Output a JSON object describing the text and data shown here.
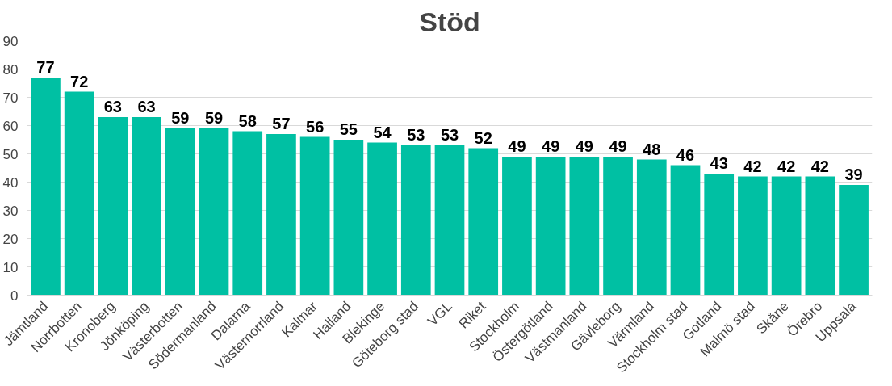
{
  "chart_data": {
    "type": "bar",
    "title": "Stöd",
    "categories": [
      "Jämtland",
      "Norrbotten",
      "Kronoberg",
      "Jönköping",
      "Västerbotten",
      "Södermanland",
      "Dalarna",
      "Västernorrland",
      "Kalmar",
      "Halland",
      "Blekinge",
      "Göteborg stad",
      "VGL",
      "Riket",
      "Stockholm",
      "Östergötland",
      "Västmanland",
      "Gävleborg",
      "Värmland",
      "Stockholm stad",
      "Gotland",
      "Malmö stad",
      "Skåne",
      "Örebro",
      "Uppsala"
    ],
    "values": [
      77,
      72,
      63,
      63,
      59,
      59,
      58,
      57,
      56,
      55,
      54,
      53,
      53,
      52,
      49,
      49,
      49,
      49,
      48,
      46,
      43,
      42,
      42,
      42,
      39
    ],
    "color": "#00c0a3",
    "ylim": [
      0,
      90
    ],
    "yticks": [
      0,
      10,
      20,
      30,
      40,
      50,
      60,
      70,
      80,
      90
    ],
    "grid": "y",
    "data_labels": true
  }
}
